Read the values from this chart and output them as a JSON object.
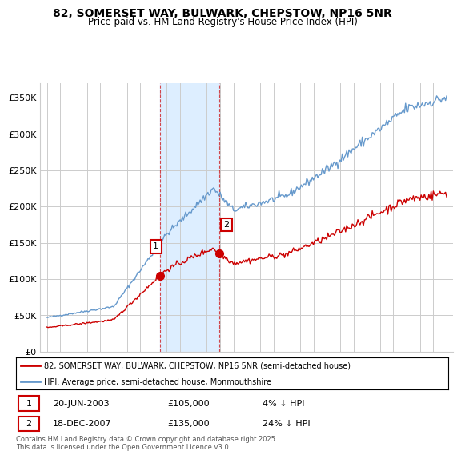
{
  "title": "82, SOMERSET WAY, BULWARK, CHEPSTOW, NP16 5NR",
  "subtitle": "Price paid vs. HM Land Registry's House Price Index (HPI)",
  "legend_line1": "82, SOMERSET WAY, BULWARK, CHEPSTOW, NP16 5NR (semi-detached house)",
  "legend_line2": "HPI: Average price, semi-detached house, Monmouthshire",
  "table_row1": [
    "1",
    "20-JUN-2003",
    "£105,000",
    "4% ↓ HPI"
  ],
  "table_row2": [
    "2",
    "18-DEC-2007",
    "£135,000",
    "24% ↓ HPI"
  ],
  "footnote": "Contains HM Land Registry data © Crown copyright and database right 2025.\nThis data is licensed under the Open Government Licence v3.0.",
  "sale1_date": 2003.47,
  "sale1_price": 105000,
  "sale2_date": 2007.96,
  "sale2_price": 135000,
  "shaded_region_start": 2003.47,
  "shaded_region_end": 2007.96,
  "ylim": [
    0,
    370000
  ],
  "xlim_start": 1994.5,
  "xlim_end": 2025.5,
  "line_color_red": "#cc0000",
  "line_color_blue": "#6699cc",
  "shade_color": "#ddeeff",
  "grid_color": "#cccccc",
  "background_color": "#ffffff",
  "label_box_color": "#ffffff",
  "label_box_edge": "#cc0000"
}
